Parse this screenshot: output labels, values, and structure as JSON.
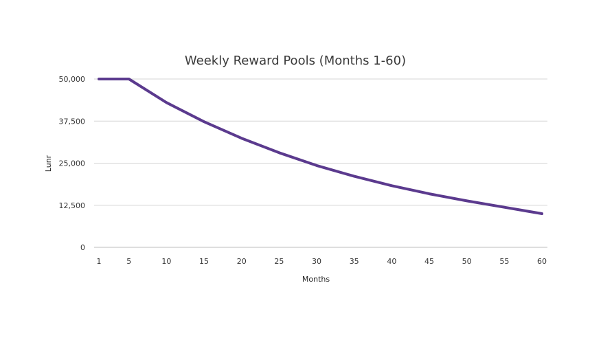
{
  "chart_data": {
    "type": "line",
    "title": "Weekly Reward Pools (Months 1-60)",
    "xlabel": "Months",
    "ylabel": "Lunr",
    "xlim": [
      1,
      60
    ],
    "ylim": [
      0,
      50000
    ],
    "x_ticks": [
      1,
      5,
      10,
      15,
      20,
      25,
      30,
      35,
      40,
      45,
      50,
      55,
      60
    ],
    "y_ticks": [
      0,
      12500,
      25000,
      37500,
      50000
    ],
    "y_tick_labels": [
      "0",
      "12,500",
      "25,000",
      "37,500",
      "50,000"
    ],
    "grid": "horizontal",
    "legend": "none",
    "line_color": "#5b3a8e",
    "series": [
      {
        "x": [
          1,
          5,
          10,
          15,
          20,
          25,
          30,
          35,
          40,
          45,
          50,
          55,
          60
        ],
        "values": [
          50000,
          50000,
          43000,
          37300,
          32400,
          28100,
          24300,
          21100,
          18300,
          15900,
          13800,
          11900,
          10000
        ]
      }
    ]
  }
}
